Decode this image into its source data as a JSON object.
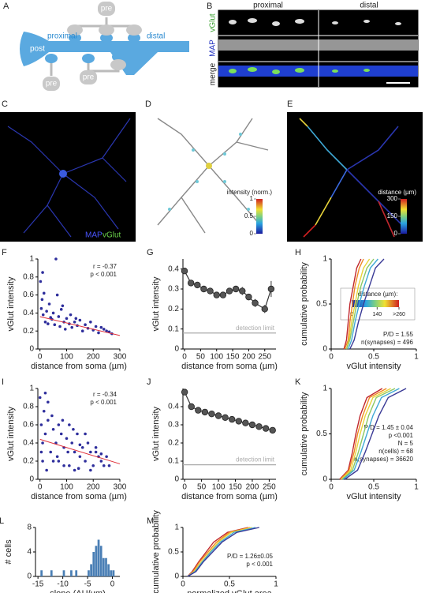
{
  "panel_a": {
    "label": "A",
    "post": "post",
    "proximal": "proximal",
    "distal": "distal",
    "pre": [
      "pre",
      "pre",
      "pre"
    ]
  },
  "panel_b": {
    "label": "B",
    "columns": [
      "proximal",
      "distal"
    ],
    "rows": [
      "vGlut",
      "MAP",
      "merge"
    ]
  },
  "panel_c": {
    "label": "C",
    "channels": [
      "MAP",
      "vGlut"
    ]
  },
  "panel_d": {
    "label": "D",
    "colorbar": {
      "title": "intensity (norm.)",
      "lim": [
        0,
        1
      ],
      "ticks": [
        1,
        0.5,
        0
      ]
    }
  },
  "panel_e": {
    "label": "E",
    "colorbar": {
      "title": "distance (µm)",
      "lim": [
        0,
        300
      ],
      "ticks": [
        300,
        150,
        0
      ]
    }
  },
  "chart_data": [
    {
      "type": "scatter",
      "panel_label": "F",
      "x_label": "distance from soma (µm)",
      "y_label": "vGlut intensity",
      "color": "#2e2e9c",
      "x": [
        2,
        5,
        8,
        12,
        15,
        20,
        25,
        30,
        35,
        40,
        45,
        50,
        55,
        60,
        70,
        75,
        80,
        90,
        95,
        100,
        110,
        115,
        120,
        130,
        140,
        150,
        160,
        170,
        180,
        190,
        200,
        210,
        220,
        230,
        240,
        250,
        260,
        270,
        10,
        65,
        85,
        135
      ],
      "values": [
        0.75,
        0.45,
        0.55,
        0.38,
        0.62,
        0.3,
        0.42,
        0.28,
        0.5,
        0.35,
        0.33,
        0.4,
        0.27,
        1.0,
        0.36,
        0.25,
        0.44,
        0.3,
        0.22,
        0.34,
        0.28,
        0.38,
        0.24,
        0.3,
        0.26,
        0.32,
        0.2,
        0.27,
        0.23,
        0.3,
        0.21,
        0.25,
        0.18,
        0.24,
        0.22,
        0.2,
        0.19,
        0.17,
        0.85,
        0.6,
        0.48,
        0.34
      ],
      "fit": {
        "x": [
          0,
          300
        ],
        "values": [
          0.36,
          0.15
        ],
        "color": "#e0303a"
      },
      "xlim": [
        -8,
        300
      ],
      "xticks": [
        0,
        100,
        200,
        300
      ],
      "ylim": [
        0,
        1
      ],
      "yticks": [
        0,
        0.2,
        0.4,
        0.6,
        0.8,
        1
      ],
      "annotations": [
        "r = -0.37",
        "p < 0.001"
      ]
    },
    {
      "type": "line",
      "panel_label": "G",
      "x_label": "distance from soma (µm)",
      "y_label": "vGlut intensity",
      "color": "#555555",
      "x": [
        0,
        20,
        40,
        60,
        80,
        100,
        120,
        140,
        160,
        180,
        200,
        220,
        250,
        270
      ],
      "values": [
        0.39,
        0.33,
        0.32,
        0.3,
        0.29,
        0.27,
        0.27,
        0.29,
        0.3,
        0.29,
        0.26,
        0.23,
        0.2,
        0.3
      ],
      "errors": [
        0.01,
        0.01,
        0.01,
        0.01,
        0.01,
        0.01,
        0.01,
        0.015,
        0.015,
        0.02,
        0.015,
        0.02,
        0.02,
        0.04
      ],
      "reference_line": {
        "value": 0.08,
        "label": "detection limit",
        "color": "#aaaaaa"
      },
      "xlim": [
        -5,
        285
      ],
      "xticks": [
        0,
        50,
        100,
        150,
        200,
        250
      ],
      "ylim": [
        0,
        0.45
      ],
      "yticks": [
        0,
        0.1,
        0.2,
        0.3,
        0.4
      ]
    },
    {
      "type": "line",
      "panel_label": "H",
      "x_label": "vGlut intensity",
      "y_label": "cumulative probability",
      "series": [
        {
          "color": "#c0272d",
          "x": [
            0.15,
            0.18,
            0.2,
            0.22,
            0.26,
            0.3,
            0.35
          ],
          "values": [
            0,
            0.1,
            0.3,
            0.5,
            0.7,
            0.9,
            1
          ]
        },
        {
          "color": "#f08a24",
          "x": [
            0.16,
            0.2,
            0.22,
            0.25,
            0.28,
            0.33,
            0.38
          ],
          "values": [
            0,
            0.1,
            0.3,
            0.5,
            0.7,
            0.9,
            1
          ]
        },
        {
          "color": "#e8d43a",
          "x": [
            0.18,
            0.21,
            0.24,
            0.28,
            0.32,
            0.38,
            0.45
          ],
          "values": [
            0,
            0.1,
            0.3,
            0.5,
            0.7,
            0.9,
            1
          ]
        },
        {
          "color": "#8cc863",
          "x": [
            0.18,
            0.22,
            0.26,
            0.3,
            0.35,
            0.42,
            0.5
          ],
          "values": [
            0,
            0.1,
            0.3,
            0.5,
            0.7,
            0.9,
            1
          ]
        },
        {
          "color": "#3fa9d6",
          "x": [
            0.2,
            0.24,
            0.28,
            0.33,
            0.39,
            0.46,
            0.55
          ],
          "values": [
            0,
            0.1,
            0.3,
            0.5,
            0.7,
            0.9,
            1
          ]
        },
        {
          "color": "#3a3a96",
          "x": [
            0.22,
            0.27,
            0.32,
            0.38,
            0.45,
            0.52,
            0.62
          ],
          "values": [
            0,
            0.1,
            0.3,
            0.5,
            0.7,
            0.9,
            1
          ]
        }
      ],
      "legend_colorbar": {
        "title": "distance (µm):",
        "lim": [
          0,
          260
        ],
        "ticks": [
          0,
          140,
          {
            "value": 260,
            "label": ">260"
          }
        ]
      },
      "xlim": [
        0,
        1
      ],
      "xticks": [
        0,
        0.5,
        1
      ],
      "ylim": [
        0,
        1
      ],
      "yticks": [
        0,
        0.5,
        1
      ],
      "annotations": [
        "P/D = 1.55",
        "n(synapses) = 496"
      ]
    },
    {
      "type": "scatter",
      "panel_label": "I",
      "x_label": "distance from soma (µm)",
      "y_label": "vGlut intensity",
      "color": "#2e2e9c",
      "x": [
        0,
        5,
        10,
        15,
        20,
        25,
        30,
        40,
        50,
        60,
        70,
        80,
        90,
        100,
        110,
        120,
        130,
        140,
        150,
        160,
        170,
        180,
        190,
        200,
        210,
        220,
        230,
        240,
        250,
        260,
        10,
        30,
        50,
        70,
        90,
        110,
        130,
        150,
        170,
        190,
        210,
        230,
        5,
        20,
        45,
        65,
        85,
        105,
        125,
        145
      ],
      "values": [
        0.9,
        0.6,
        0.2,
        0.75,
        0.5,
        0.1,
        0.65,
        0.3,
        0.55,
        0.4,
        0.2,
        0.5,
        0.35,
        0.45,
        0.15,
        0.4,
        0.3,
        0.5,
        0.25,
        0.35,
        0.2,
        0.4,
        0.3,
        0.15,
        0.3,
        0.25,
        0.2,
        0.15,
        0.25,
        0.15,
        0.4,
        0.85,
        0.2,
        0.6,
        0.15,
        0.6,
        0.1,
        0.38,
        0.5,
        0.1,
        0.35,
        0.28,
        0.3,
        0.95,
        0.7,
        0.25,
        0.65,
        0.3,
        0.55,
        0.12
      ],
      "fit": {
        "x": [
          0,
          300
        ],
        "values": [
          0.44,
          0.17
        ],
        "color": "#e0303a"
      },
      "xlim": [
        -8,
        300
      ],
      "xticks": [
        0,
        100,
        200,
        300
      ],
      "ylim": [
        0,
        1
      ],
      "yticks": [
        0,
        0.2,
        0.4,
        0.6,
        0.8,
        1
      ],
      "annotations": [
        "r = -0.34",
        "p < 0.001"
      ]
    },
    {
      "type": "line",
      "panel_label": "J",
      "x_label": "distance from soma (µm)",
      "y_label": "vGlut intensity",
      "color": "#555555",
      "x": [
        0,
        20,
        40,
        60,
        80,
        100,
        120,
        140,
        160,
        180,
        200,
        220,
        240,
        260
      ],
      "values": [
        0.48,
        0.4,
        0.38,
        0.37,
        0.36,
        0.35,
        0.34,
        0.33,
        0.32,
        0.31,
        0.3,
        0.29,
        0.28,
        0.27
      ],
      "errors": [
        0.008,
        0.005,
        0.005,
        0.005,
        0.005,
        0.005,
        0.005,
        0.005,
        0.005,
        0.005,
        0.005,
        0.005,
        0.005,
        0.005
      ],
      "reference_line": {
        "value": 0.08,
        "label": "detection limit",
        "color": "#aaaaaa"
      },
      "xlim": [
        -5,
        270
      ],
      "xticks": [
        0,
        50,
        100,
        150,
        200,
        250
      ],
      "ylim": [
        0,
        0.5
      ],
      "yticks": [
        0,
        0.1,
        0.2,
        0.3,
        0.4
      ]
    },
    {
      "type": "line",
      "panel_label": "K",
      "x_label": "vGlut intensity",
      "y_label": "cumulative probability",
      "series": [
        {
          "color": "#c0272d",
          "x": [
            0.1,
            0.2,
            0.25,
            0.29,
            0.34,
            0.42,
            0.6
          ],
          "values": [
            0,
            0.1,
            0.3,
            0.5,
            0.7,
            0.9,
            1
          ]
        },
        {
          "color": "#f08a24",
          "x": [
            0.11,
            0.21,
            0.27,
            0.31,
            0.37,
            0.45,
            0.65
          ],
          "values": [
            0,
            0.1,
            0.3,
            0.5,
            0.7,
            0.9,
            1
          ]
        },
        {
          "color": "#e8d43a",
          "x": [
            0.12,
            0.23,
            0.29,
            0.34,
            0.4,
            0.49,
            0.7
          ],
          "values": [
            0,
            0.1,
            0.3,
            0.5,
            0.7,
            0.9,
            1
          ]
        },
        {
          "color": "#8cc863",
          "x": [
            0.13,
            0.25,
            0.32,
            0.38,
            0.44,
            0.53,
            0.75
          ],
          "values": [
            0,
            0.1,
            0.3,
            0.5,
            0.7,
            0.9,
            1
          ]
        },
        {
          "color": "#3fa9d6",
          "x": [
            0.14,
            0.27,
            0.35,
            0.42,
            0.49,
            0.59,
            0.8
          ],
          "values": [
            0,
            0.1,
            0.3,
            0.5,
            0.7,
            0.9,
            1
          ]
        },
        {
          "color": "#3a3a96",
          "x": [
            0.16,
            0.31,
            0.4,
            0.48,
            0.56,
            0.67,
            0.88
          ],
          "values": [
            0,
            0.1,
            0.3,
            0.5,
            0.7,
            0.9,
            1
          ]
        }
      ],
      "xlim": [
        0,
        1
      ],
      "xticks": [
        0,
        0.5,
        1
      ],
      "ylim": [
        0,
        1
      ],
      "yticks": [
        0,
        0.5,
        1
      ],
      "annotations": [
        "P/D = 1.45 ± 0.04",
        "p <0.001",
        "N = 5",
        "n(cells) = 68",
        "n(synapses) = 36620"
      ]
    },
    {
      "type": "histogram",
      "panel_label": "L",
      "x_label": "slope (AU/µm)",
      "y_label": "# cells",
      "color": "#4a7fb5",
      "bins": [
        -15,
        -14.5,
        -14,
        -13.5,
        -13,
        -12.5,
        -12,
        -11.5,
        -11,
        -10.5,
        -10,
        -9.5,
        -9,
        -8.5,
        -8,
        -7.5,
        -7,
        -6.5,
        -6,
        -5.5,
        -5,
        -4.5,
        -4,
        -3.5,
        -3,
        -2.5,
        -2,
        -1.5,
        -1,
        -0.5,
        0,
        0.5,
        1
      ],
      "counts": [
        0,
        1,
        0,
        0,
        0,
        1,
        0,
        0,
        0,
        0,
        1,
        0,
        0,
        1,
        0,
        1,
        0,
        0,
        0,
        0,
        1,
        2,
        4,
        5,
        6,
        5,
        3,
        3,
        2,
        1,
        1,
        0
      ],
      "xlim": [
        -15.5,
        1.5
      ],
      "xticks": [
        -15,
        -10,
        -5,
        0
      ],
      "ylim": [
        0,
        8
      ],
      "yticks": [
        0,
        4,
        8
      ]
    },
    {
      "type": "line",
      "panel_label": "M",
      "x_label": "normalized vGlut area",
      "y_label": "cumulative probability",
      "series": [
        {
          "color": "#c0272d",
          "x": [
            0.05,
            0.1,
            0.17,
            0.25,
            0.33,
            0.48,
            0.7
          ],
          "values": [
            0,
            0.1,
            0.3,
            0.5,
            0.7,
            0.9,
            1
          ]
        },
        {
          "color": "#f08a24",
          "x": [
            0.05,
            0.11,
            0.18,
            0.27,
            0.36,
            0.5,
            0.72
          ],
          "values": [
            0,
            0.1,
            0.3,
            0.5,
            0.7,
            0.9,
            1
          ]
        },
        {
          "color": "#e8d43a",
          "x": [
            0.05,
            0.12,
            0.2,
            0.29,
            0.38,
            0.52,
            0.74
          ],
          "values": [
            0,
            0.1,
            0.3,
            0.5,
            0.7,
            0.9,
            1
          ]
        },
        {
          "color": "#3fa9d6",
          "x": [
            0.05,
            0.13,
            0.21,
            0.3,
            0.4,
            0.55,
            0.78
          ],
          "values": [
            0,
            0.1,
            0.3,
            0.5,
            0.7,
            0.9,
            1
          ]
        },
        {
          "color": "#3a3a96",
          "x": [
            0.05,
            0.14,
            0.22,
            0.32,
            0.42,
            0.58,
            0.82
          ],
          "values": [
            0,
            0.1,
            0.3,
            0.5,
            0.7,
            0.9,
            1
          ]
        }
      ],
      "xlim": [
        0,
        1
      ],
      "xticks": [
        0,
        0.5,
        1
      ],
      "ylim": [
        0,
        1
      ],
      "yticks": [
        0,
        0.5,
        1
      ],
      "annotations": [
        "P/D = 1.26±0.05",
        "p < 0.001"
      ]
    }
  ]
}
